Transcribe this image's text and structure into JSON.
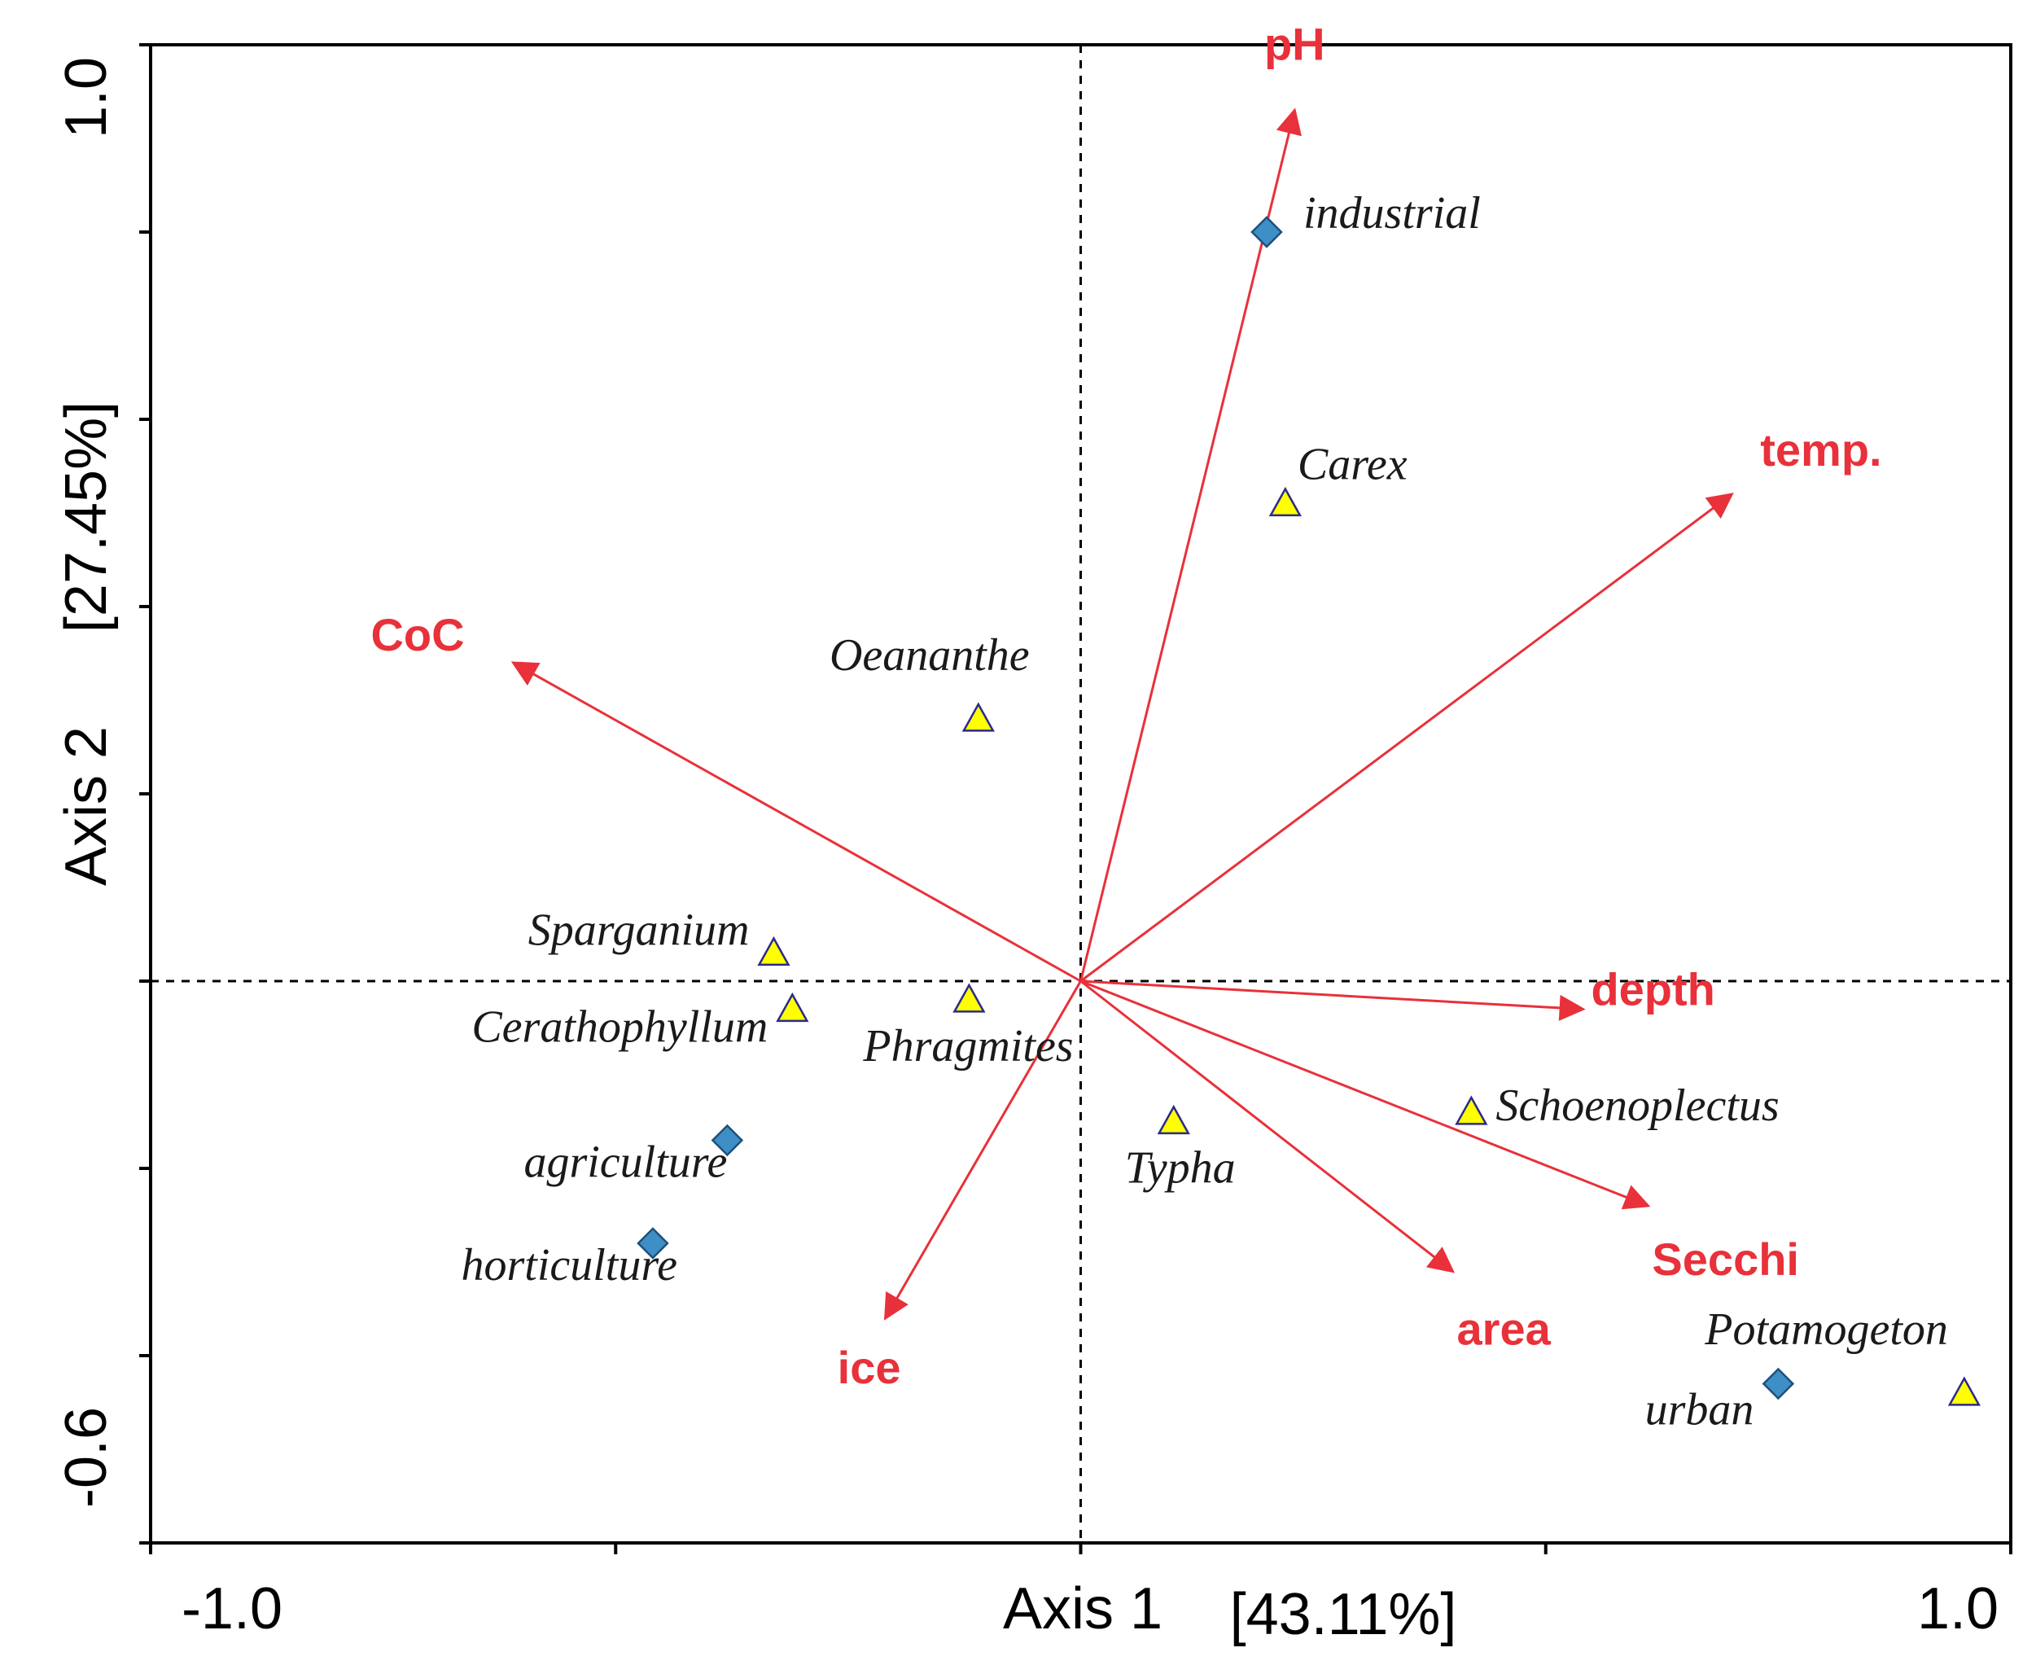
{
  "chart_data": {
    "type": "scatter",
    "subtype": "ordination biplot",
    "x_axis": {
      "label": "Axis 1",
      "percent": "[43.11%]",
      "range": [
        -1.0,
        1.0
      ],
      "tick_labels": [
        "-1.0",
        "1.0"
      ]
    },
    "y_axis": {
      "label": "Axis 2",
      "percent": "[27.45%]",
      "range": [
        -0.6,
        1.0
      ],
      "tick_labels": [
        "-0.6",
        "1.0"
      ]
    },
    "grid": false,
    "reference_lines": "dashed lines at x=0 and y=0",
    "env_arrows": [
      {
        "name": "pH",
        "x": 0.23,
        "y": 0.93
      },
      {
        "name": "temp.",
        "x": 0.7,
        "y": 0.52
      },
      {
        "name": "CoC",
        "x": -0.61,
        "y": 0.34
      },
      {
        "name": "depth",
        "x": 0.54,
        "y": -0.03
      },
      {
        "name": "Secchi",
        "x": 0.61,
        "y": -0.24
      },
      {
        "name": "area",
        "x": 0.4,
        "y": -0.31
      },
      {
        "name": "ice",
        "x": -0.21,
        "y": -0.36
      }
    ],
    "species": [
      {
        "name": "Carex",
        "x": 0.22,
        "y": 0.51
      },
      {
        "name": "Oeananthe",
        "x": -0.11,
        "y": 0.28
      },
      {
        "name": "Sparganium",
        "x": -0.33,
        "y": 0.03
      },
      {
        "name": "Cerathophyllum",
        "x": -0.31,
        "y": -0.03
      },
      {
        "name": "Phragmites",
        "x": -0.12,
        "y": -0.02
      },
      {
        "name": "Typha",
        "x": 0.1,
        "y": -0.15
      },
      {
        "name": "Schoenoplectus",
        "x": 0.42,
        "y": -0.14
      },
      {
        "name": "Potamogeton",
        "x": 0.95,
        "y": -0.44
      }
    ],
    "sites": [
      {
        "name": "industrial",
        "x": 0.2,
        "y": 0.8
      },
      {
        "name": "agriculture",
        "x": -0.38,
        "y": -0.17
      },
      {
        "name": "horticulture",
        "x": -0.46,
        "y": -0.28
      },
      {
        "name": "urban",
        "x": 0.75,
        "y": -0.43
      }
    ],
    "colors": {
      "arrow": "#e8313a",
      "species_fill": "#ffff00",
      "species_stroke": "#2a2a8a",
      "site_fill": "#3d8fc6",
      "site_stroke": "#1f4f7a"
    }
  }
}
